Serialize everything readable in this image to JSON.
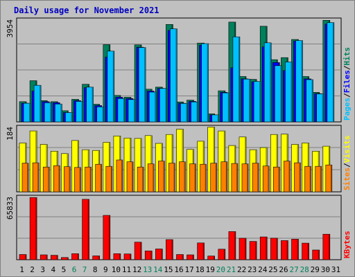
{
  "title": "Daily usage for November 2021",
  "colors": {
    "hits": "#00805c",
    "files": "#0000ff",
    "pages": "#00c0ff",
    "visits": "#ffff00",
    "sites": "#ff8000",
    "kbytes": "#ff0000",
    "weekend_tick": "#00805c",
    "weekday_tick": "#000000"
  },
  "chart_data": [
    {
      "type": "bar",
      "panel": "hits-files-pages",
      "y_max_label": "3954",
      "ylim": [
        0,
        3954
      ],
      "right_labels": [
        "Pages",
        "/",
        "Files",
        "/",
        "Hits"
      ],
      "categories": [
        "1",
        "2",
        "3",
        "4",
        "5",
        "6",
        "7",
        "8",
        "9",
        "10",
        "11",
        "12",
        "13",
        "14",
        "15",
        "16",
        "17",
        "18",
        "19",
        "20",
        "21",
        "22",
        "23",
        "24",
        "25",
        "26",
        "27",
        "28",
        "29",
        "30",
        "31"
      ],
      "series": [
        {
          "name": "Hits",
          "values": [
            780,
            1590,
            820,
            780,
            430,
            870,
            1450,
            680,
            2980,
            1020,
            950,
            2970,
            1260,
            1340,
            3760,
            770,
            840,
            3040,
            310,
            1200,
            3850,
            1750,
            1640,
            3690,
            2400,
            2480,
            3180,
            1750,
            1140,
            3920,
            0
          ]
        },
        {
          "name": "Files",
          "values": [
            720,
            1190,
            780,
            740,
            360,
            820,
            1320,
            630,
            2500,
            950,
            900,
            2880,
            1190,
            1290,
            3530,
            720,
            790,
            2960,
            270,
            1140,
            2090,
            1660,
            1550,
            2890,
            2290,
            1980,
            3120,
            1660,
            1090,
            3770,
            0
          ]
        },
        {
          "name": "Pages",
          "values": [
            720,
            1410,
            740,
            690,
            360,
            790,
            1340,
            580,
            2730,
            900,
            860,
            2870,
            1150,
            1290,
            3590,
            710,
            770,
            3020,
            270,
            1120,
            3280,
            1650,
            1560,
            3050,
            2170,
            2310,
            3140,
            1630,
            1080,
            3830,
            0
          ]
        }
      ]
    },
    {
      "type": "bar",
      "panel": "visits-sites",
      "y_max_label": "184",
      "ylim": [
        0,
        184
      ],
      "right_labels": [
        "Sites",
        "/",
        "Visits"
      ],
      "categories": [
        "1",
        "2",
        "3",
        "4",
        "5",
        "6",
        "7",
        "8",
        "9",
        "10",
        "11",
        "12",
        "13",
        "14",
        "15",
        "16",
        "17",
        "18",
        "19",
        "20",
        "21",
        "22",
        "23",
        "24",
        "25",
        "26",
        "27",
        "28",
        "29",
        "30",
        "31"
      ],
      "series": [
        {
          "name": "Visits",
          "values": [
            138,
            172,
            134,
            115,
            108,
            145,
            119,
            117,
            140,
            158,
            152,
            151,
            159,
            137,
            162,
            177,
            120,
            143,
            183,
            172,
            131,
            155,
            119,
            125,
            162,
            163,
            134,
            138,
            115,
            129,
            0
          ]
        },
        {
          "name": "Sites",
          "values": [
            81,
            82,
            70,
            74,
            71,
            69,
            70,
            78,
            72,
            90,
            85,
            70,
            79,
            87,
            81,
            85,
            79,
            78,
            81,
            85,
            80,
            79,
            81,
            73,
            70,
            87,
            82,
            72,
            72,
            76,
            0
          ]
        }
      ]
    },
    {
      "type": "bar",
      "panel": "kbytes",
      "y_max_label": "65833",
      "ylim": [
        0,
        65833
      ],
      "right_labels": [
        "KBytes"
      ],
      "categories": [
        "1",
        "2",
        "3",
        "4",
        "5",
        "6",
        "7",
        "8",
        "9",
        "10",
        "11",
        "12",
        "13",
        "14",
        "15",
        "16",
        "17",
        "18",
        "19",
        "20",
        "21",
        "22",
        "23",
        "24",
        "25",
        "26",
        "27",
        "28",
        "29",
        "30",
        "31"
      ],
      "series": [
        {
          "name": "KBytes",
          "values": [
            5400,
            65000,
            5100,
            4600,
            2300,
            6300,
            63100,
            4000,
            46300,
            6300,
            6000,
            18300,
            9200,
            11200,
            21000,
            5400,
            5100,
            17500,
            3800,
            11000,
            29400,
            22400,
            19100,
            23800,
            22500,
            20000,
            21400,
            17300,
            10100,
            26600,
            0
          ]
        }
      ]
    }
  ],
  "x_ticks": [
    "1",
    "2",
    "3",
    "4",
    "5",
    "6",
    "7",
    "8",
    "9",
    "10",
    "11",
    "12",
    "13",
    "14",
    "15",
    "16",
    "17",
    "18",
    "19",
    "20",
    "21",
    "22",
    "23",
    "24",
    "25",
    "26",
    "27",
    "28",
    "29",
    "30",
    "31"
  ],
  "weekend_days": [
    6,
    7,
    13,
    14,
    20,
    21,
    27,
    28
  ]
}
